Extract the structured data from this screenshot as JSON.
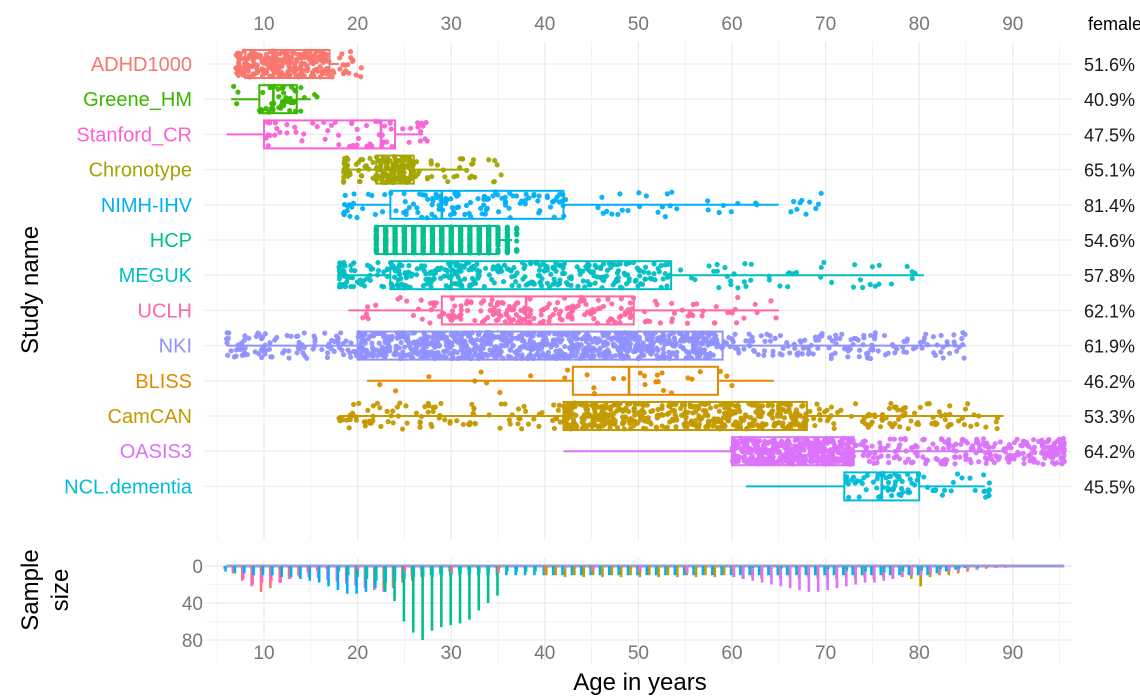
{
  "chart_data": [
    {
      "type": "box",
      "ylabel": "Study name",
      "x_ticks": [
        10,
        20,
        30,
        40,
        50,
        60,
        70,
        80,
        90
      ],
      "xlim": [
        5,
        96
      ],
      "grid": true,
      "percent_header": "female",
      "studies": [
        {
          "name": "ADHD1000",
          "color": "#F8766D",
          "female": "51.6%",
          "q1": 8,
          "median": 11,
          "q3": 17,
          "whisker_min": 8,
          "whisker_max": 18,
          "point_range": [
            7,
            21.5
          ],
          "n": 250,
          "spread": "left"
        },
        {
          "name": "Greene_HM",
          "color": "#39B600",
          "female": "40.9%",
          "q1": 9.5,
          "median": 11,
          "q3": 13.5,
          "whisker_min": 6.5,
          "whisker_max": 15,
          "point_range": [
            6.5,
            16
          ],
          "n": 45,
          "spread": "uniform"
        },
        {
          "name": "Stanford_CR",
          "color": "#FB61D7",
          "female": "47.5%",
          "q1": 10,
          "median": 22.5,
          "q3": 24,
          "whisker_min": 6,
          "whisker_max": 27,
          "point_range": [
            5.5,
            27.5
          ],
          "n": 60,
          "spread": "right"
        },
        {
          "name": "Chronotype",
          "color": "#A3A500",
          "female": "65.1%",
          "q1": 22,
          "median": 24,
          "q3": 26,
          "whisker_min": 18.5,
          "whisker_max": 31.5,
          "point_range": [
            18.5,
            35.5
          ],
          "n": 200,
          "spread": "left"
        },
        {
          "name": "NIMH-IHV",
          "color": "#00B0F6",
          "female": "81.4%",
          "q1": 23.5,
          "median": 29,
          "q3": 42,
          "whisker_min": 18.5,
          "whisker_max": 65,
          "point_range": [
            18.5,
            71
          ],
          "n": 160,
          "spread": "left"
        },
        {
          "name": "HCP",
          "color": "#00C08B",
          "female": "54.6%",
          "q1": 22,
          "median": 29,
          "q3": 35,
          "whisker_min": 22,
          "whisker_max": 36.5,
          "point_range": [
            22,
            37
          ],
          "n": 950,
          "spread": "uniform"
        },
        {
          "name": "MEGUK",
          "color": "#00BFC4",
          "female": "57.8%",
          "q1": 23.5,
          "median": 30,
          "q3": 53.5,
          "whisker_min": 18,
          "whisker_max": 80.5,
          "point_range": [
            18,
            80.5
          ],
          "n": 400,
          "spread": "left"
        },
        {
          "name": "UCLH",
          "color": "#FF67A4",
          "female": "62.1%",
          "q1": 29,
          "median": 38,
          "q3": 49.5,
          "whisker_min": 19,
          "whisker_max": 65,
          "point_range": [
            19,
            65
          ],
          "n": 200,
          "spread": "uniform"
        },
        {
          "name": "NKI",
          "color": "#8F91FF",
          "female": "61.9%",
          "q1": 20,
          "median": 38.5,
          "q3": 59,
          "whisker_min": 6,
          "whisker_max": 85,
          "point_range": [
            6,
            85.5
          ],
          "n": 1100,
          "spread": "uniform"
        },
        {
          "name": "BLISS",
          "color": "#E38900",
          "female": "46.2%",
          "q1": 43,
          "median": 49,
          "q3": 58.5,
          "whisker_min": 21,
          "whisker_max": 64.5,
          "point_range": [
            21,
            64.5
          ],
          "n": 30,
          "spread": "uniform"
        },
        {
          "name": "CamCAN",
          "color": "#C49A00",
          "female": "53.3%",
          "q1": 42,
          "median": 55,
          "q3": 68,
          "whisker_min": 18,
          "whisker_max": 89,
          "point_range": [
            18,
            89
          ],
          "n": 650,
          "spread": "uniform"
        },
        {
          "name": "OASIS3",
          "color": "#DB72FB",
          "female": "64.2%",
          "q1": 60,
          "median": 66,
          "q3": 73,
          "whisker_min": 42,
          "whisker_max": 89,
          "point_range": [
            42,
            95.5
          ],
          "n": 700,
          "spread": "right"
        },
        {
          "name": "NCL.dementia",
          "color": "#00BCD8",
          "female": "45.5%",
          "q1": 72,
          "median": 76,
          "q3": 80,
          "whisker_min": 61.5,
          "whisker_max": 87,
          "point_range": [
            61.5,
            87.5
          ],
          "n": 80,
          "spread": "right"
        }
      ]
    },
    {
      "type": "bar",
      "ylabel": "Sample\nsize",
      "ylabel_lines": [
        "Sample",
        "size"
      ],
      "xlabel": "Age in years",
      "y_ticks": [
        0,
        40,
        80
      ],
      "ylim": [
        0,
        85
      ],
      "x_ticks": [
        10,
        20,
        30,
        40,
        50,
        60,
        70,
        80,
        90
      ],
      "bars": [
        {
          "study": "ADHD1000",
          "x": [
            7,
            8,
            9,
            10,
            11,
            12,
            13,
            14,
            15,
            16,
            17
          ],
          "values": [
            8,
            16,
            22,
            28,
            24,
            18,
            14,
            10,
            7,
            5,
            3
          ]
        },
        {
          "study": "Greene_HM",
          "x": [
            7,
            8,
            9,
            10,
            11,
            12,
            13,
            14,
            15
          ],
          "values": [
            2,
            3,
            4,
            5,
            5,
            4,
            3,
            2,
            1
          ]
        },
        {
          "study": "Stanford_CR",
          "x": [
            6,
            7,
            8,
            9,
            10,
            11,
            12,
            13,
            14,
            15,
            16,
            17,
            18,
            19,
            20,
            21,
            22,
            23,
            24,
            25,
            26,
            27
          ],
          "values": [
            3,
            6,
            14,
            20,
            18,
            16,
            18,
            14,
            12,
            12,
            13,
            15,
            17,
            19,
            21,
            24,
            26,
            28,
            24,
            18,
            10,
            4
          ]
        },
        {
          "study": "Chronotype",
          "x": [
            19,
            20,
            21,
            22,
            23,
            24,
            25,
            26,
            27,
            28,
            29,
            30,
            31,
            32,
            33,
            34,
            35
          ],
          "values": [
            8,
            14,
            18,
            22,
            24,
            20,
            18,
            16,
            12,
            10,
            8,
            6,
            5,
            4,
            3,
            2,
            2
          ]
        },
        {
          "study": "NIMH-IHV",
          "x": [
            6,
            7,
            8,
            9,
            10,
            11,
            12,
            13,
            14,
            15,
            16,
            17,
            18,
            19,
            20,
            21,
            22,
            23,
            24,
            25,
            26,
            27,
            28,
            29,
            30,
            31,
            32,
            33,
            34,
            35,
            36,
            37,
            38,
            39,
            40,
            41,
            42,
            43,
            44,
            45,
            46,
            47,
            48,
            49,
            50,
            51,
            52,
            53,
            54,
            55,
            56,
            57,
            58,
            59,
            60,
            61,
            62,
            63,
            64,
            65,
            66,
            67,
            68,
            69,
            70,
            71,
            72,
            73,
            74,
            75,
            76,
            77,
            78,
            79,
            80,
            81,
            82,
            83,
            84,
            85
          ],
          "values": [
            6,
            8,
            8,
            10,
            10,
            10,
            12,
            12,
            14,
            16,
            18,
            22,
            26,
            30,
            30,
            28,
            24,
            20,
            16,
            14,
            12,
            10,
            10,
            10,
            10,
            10,
            10,
            10,
            10,
            10,
            10,
            10,
            10,
            10,
            10,
            10,
            10,
            10,
            10,
            10,
            10,
            10,
            10,
            10,
            10,
            10,
            10,
            10,
            10,
            10,
            10,
            10,
            10,
            10,
            10,
            10,
            10,
            10,
            10,
            10,
            10,
            10,
            10,
            10,
            10,
            10,
            10,
            10,
            10,
            10,
            10,
            10,
            10,
            10,
            10,
            10,
            8,
            6,
            4,
            2
          ]
        },
        {
          "study": "HCP",
          "x": [
            22,
            23,
            24,
            25,
            26,
            27,
            28,
            29,
            30,
            31,
            32,
            33,
            34,
            35,
            36
          ],
          "values": [
            16,
            28,
            38,
            60,
            72,
            80,
            70,
            66,
            64,
            62,
            58,
            48,
            40,
            32,
            4
          ]
        },
        {
          "study": "MEGUK",
          "x": [
            18,
            19,
            20,
            21,
            22,
            23,
            24,
            25,
            26,
            27,
            28,
            29,
            30,
            31,
            32,
            33,
            34,
            35,
            36,
            37,
            38,
            39,
            40
          ],
          "values": [
            6,
            10,
            12,
            14,
            16,
            18,
            16,
            14,
            12,
            12,
            12,
            10,
            10,
            8,
            8,
            8,
            8,
            8,
            6,
            6,
            6,
            6,
            6
          ]
        },
        {
          "study": "UCLH",
          "x": [
            20,
            25,
            30,
            35,
            40,
            45,
            50,
            55,
            60,
            65
          ],
          "values": [
            4,
            6,
            8,
            8,
            8,
            6,
            6,
            5,
            4,
            2
          ]
        },
        {
          "study": "BLISS",
          "x": [
            35,
            40,
            45,
            50,
            55,
            60,
            65
          ],
          "values": [
            3,
            4,
            5,
            6,
            5,
            4,
            3
          ]
        },
        {
          "study": "CamCAN",
          "x": [
            40,
            41,
            42,
            43,
            44,
            45,
            46,
            47,
            48,
            49,
            50,
            51,
            52,
            53,
            54,
            55,
            56,
            57,
            58,
            59,
            60,
            61,
            62,
            63,
            64,
            65,
            66,
            67,
            68,
            69,
            70,
            71,
            72,
            73,
            74,
            75,
            76,
            77,
            78,
            79,
            80,
            81,
            82,
            83,
            84,
            85,
            86,
            87,
            88
          ],
          "values": [
            10,
            10,
            12,
            10,
            12,
            10,
            12,
            10,
            12,
            10,
            12,
            10,
            12,
            10,
            12,
            10,
            12,
            10,
            12,
            10,
            12,
            14,
            12,
            14,
            12,
            14,
            12,
            14,
            12,
            14,
            12,
            14,
            12,
            14,
            12,
            14,
            12,
            14,
            12,
            14,
            22,
            12,
            10,
            10,
            8,
            6,
            4,
            3,
            2
          ]
        },
        {
          "study": "OASIS3",
          "x": [
            42,
            45,
            50,
            55,
            60,
            61,
            62,
            63,
            64,
            65,
            66,
            67,
            68,
            69,
            70,
            71,
            72,
            73,
            74,
            75,
            76,
            77,
            78,
            79,
            80,
            81,
            82,
            83,
            84,
            85,
            86,
            87,
            88,
            89,
            90,
            95
          ],
          "values": [
            2,
            4,
            6,
            8,
            12,
            14,
            16,
            18,
            20,
            22,
            24,
            26,
            28,
            28,
            26,
            24,
            22,
            20,
            18,
            18,
            16,
            14,
            12,
            10,
            10,
            8,
            8,
            6,
            6,
            4,
            4,
            2,
            2,
            2,
            1,
            1
          ]
        },
        {
          "study": "NCL.dementia",
          "x": [
            62,
            65,
            70,
            72,
            74,
            76,
            78,
            80,
            82,
            84,
            86
          ],
          "values": [
            2,
            3,
            4,
            5,
            6,
            7,
            6,
            5,
            4,
            3,
            2
          ]
        }
      ]
    }
  ]
}
